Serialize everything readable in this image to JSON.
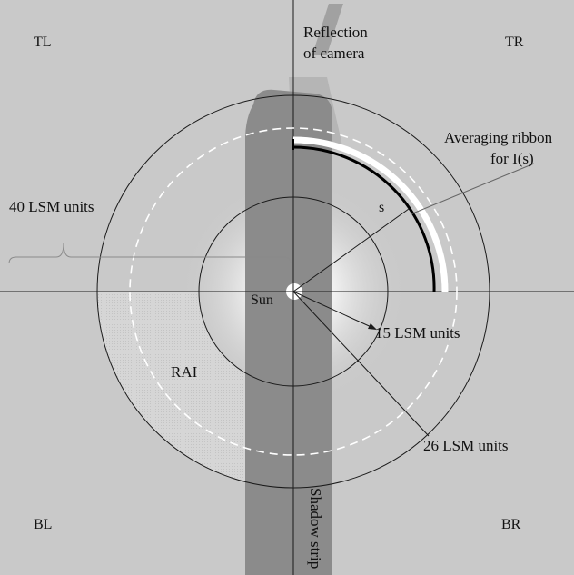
{
  "quadrants": {
    "top_left": "TL",
    "top_right": "TR",
    "bottom_left": "BL",
    "bottom_right": "BR"
  },
  "camera_reflection": {
    "line1": "Reflection",
    "line2": "of camera"
  },
  "averaging_ribbon": {
    "line1": "Averaging ribbon",
    "line2": "for I(s)"
  },
  "arc_parameter": "s",
  "sun_label": "Sun",
  "region_label": "RAI",
  "dimension_labels": {
    "lsm_40": "40 LSM units",
    "lsm_15": "15 LSM units",
    "lsm_26": "26 LSM units"
  },
  "shadow_label": "Shadow strip",
  "colors": {
    "background": "#c9c9c9",
    "shadow_strip": "#8b8b8b",
    "ribbon_white": "#ffffff",
    "ribbon_black": "#000000",
    "rai_region": "#d6d6d6",
    "lines": "#1a1a1a"
  }
}
